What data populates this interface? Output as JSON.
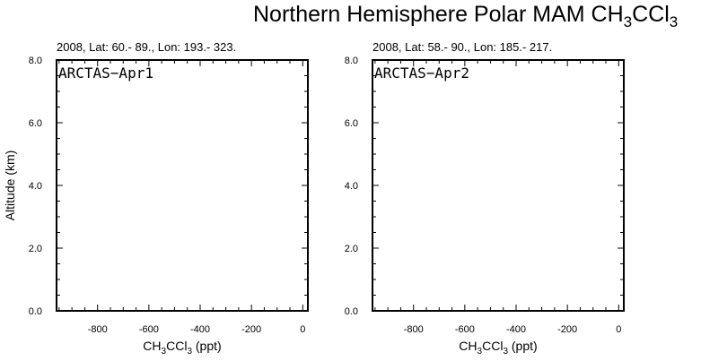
{
  "figure": {
    "title_text": "Northern Hemisphere Polar MAM CH",
    "title_sub": "3",
    "title_tail": "CCl",
    "title_sub2": "3"
  },
  "chart_data": [
    {
      "type": "line",
      "subtitle": "2008, Lat:  60.- 89., Lon: 193.- 323.",
      "annotation": "ARCTAS−Apr1",
      "xlabel_main": "CH",
      "xlabel_sub1": "3",
      "xlabel_mid": "CCl",
      "xlabel_sub2": "3",
      "xlabel_tail": " (ppt)",
      "ylabel": "Altitude (km)",
      "xlim": [
        -960,
        20
      ],
      "ylim": [
        0,
        8
      ],
      "x_ticks": [
        -800,
        -600,
        -400,
        -200,
        0
      ],
      "y_ticks": [
        0,
        2,
        4,
        6,
        8
      ],
      "x_tick_labels": [
        "-800",
        "-600",
        "-400",
        "-200",
        "0"
      ],
      "y_tick_labels": [
        "0.0",
        "2.0",
        "4.0",
        "6.0",
        "8.0"
      ],
      "series": []
    },
    {
      "type": "line",
      "subtitle": "2008, Lat:  58.- 90., Lon: 185.- 217.",
      "annotation": "ARCTAS−Apr2",
      "xlabel_main": "CH",
      "xlabel_sub1": "3",
      "xlabel_mid": "CCl",
      "xlabel_sub2": "3",
      "xlabel_tail": " (ppt)",
      "ylabel": "",
      "xlim": [
        -960,
        20
      ],
      "ylim": [
        0,
        8
      ],
      "x_ticks": [
        -800,
        -600,
        -400,
        -200,
        0
      ],
      "y_ticks": [
        0,
        2,
        4,
        6,
        8
      ],
      "x_tick_labels": [
        "-800",
        "-600",
        "-400",
        "-200",
        "0"
      ],
      "y_tick_labels": [
        "0.0",
        "2.0",
        "4.0",
        "6.0",
        "8.0"
      ],
      "series": []
    }
  ]
}
